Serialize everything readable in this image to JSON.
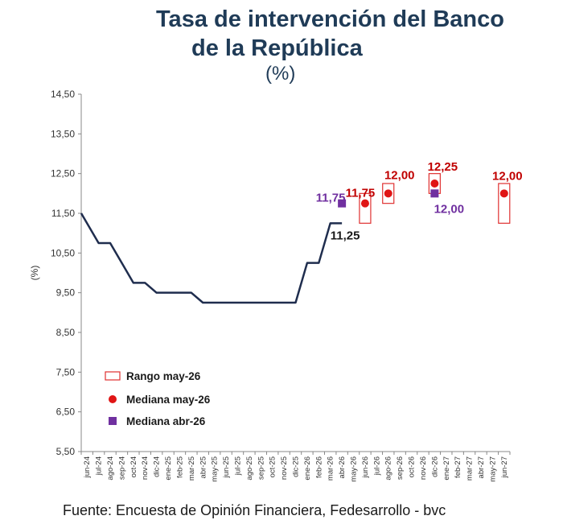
{
  "title_line1": "Tasa de intervención del Banco",
  "title_line2": "de la República",
  "unit_label": "(%)",
  "footer": "Fuente: Encuesta de Opinión Financiera, Fedesarrollo - bvc",
  "chart_data": {
    "type": "line",
    "ylabel": "(%)",
    "ylim": [
      5.5,
      14.5
    ],
    "yticks": [
      "5,50",
      "6,50",
      "7,50",
      "8,50",
      "9,50",
      "10,50",
      "11,50",
      "12,50",
      "13,50",
      "14,50"
    ],
    "categories": [
      "jun-24",
      "jul-24",
      "ago-24",
      "sep-24",
      "oct-24",
      "nov-24",
      "dic-24",
      "ene-25",
      "feb-25",
      "mar-25",
      "abr-25",
      "may-25",
      "jun-25",
      "jul-25",
      "ago-25",
      "sep-25",
      "oct-25",
      "nov-25",
      "dic-25",
      "ene-26",
      "feb-26",
      "mar-26",
      "abr-26",
      "may-26",
      "jun-26",
      "jul-26",
      "ago-26",
      "sep-26",
      "oct-26",
      "nov-26",
      "dic-26",
      "ene-27",
      "feb-27",
      "mar-27",
      "abr-27",
      "may-27",
      "jun-27"
    ],
    "historical": {
      "name": "",
      "color": "#1f2d4e",
      "points": [
        {
          "x": "jun-24",
          "y": 11.5
        },
        {
          "x": "jul-24",
          "y": 10.75
        },
        {
          "x": "ago-24",
          "y": 10.75
        },
        {
          "x": "sep-24",
          "y": 10.25
        },
        {
          "x": "oct-24",
          "y": 9.75
        },
        {
          "x": "nov-24",
          "y": 9.75
        },
        {
          "x": "dic-24",
          "y": 9.5
        },
        {
          "x": "ene-25",
          "y": 9.5
        },
        {
          "x": "feb-25",
          "y": 9.5
        },
        {
          "x": "mar-25",
          "y": 9.5
        },
        {
          "x": "abr-25",
          "y": 9.25
        },
        {
          "x": "may-25",
          "y": 9.25
        },
        {
          "x": "jun-25",
          "y": 9.25
        },
        {
          "x": "jul-25",
          "y": 9.25
        },
        {
          "x": "ago-25",
          "y": 9.25
        },
        {
          "x": "sep-25",
          "y": 9.25
        },
        {
          "x": "oct-25",
          "y": 9.25
        },
        {
          "x": "nov-25",
          "y": 9.25
        },
        {
          "x": "dic-25",
          "y": 9.25
        },
        {
          "x": "ene-26",
          "y": 10.25
        },
        {
          "x": "feb-26",
          "y": 10.25
        },
        {
          "x": "mar-26",
          "y": 11.25
        },
        {
          "x": "abr-26",
          "y": 11.25
        }
      ],
      "end_label": "11,25"
    },
    "range_may26": {
      "name": "Rango may-26",
      "color": "#e03030",
      "ranges": [
        {
          "x": "jun-26",
          "low": 11.25,
          "high": 12.0
        },
        {
          "x": "ago-26",
          "low": 11.75,
          "high": 12.25
        },
        {
          "x": "dic-26",
          "low": 12.0,
          "high": 12.5
        },
        {
          "x": "jun-27",
          "low": 11.25,
          "high": 12.25
        }
      ]
    },
    "median_may26": {
      "name": "Mediana may-26",
      "color": "#e01515",
      "label_color": "#c00000",
      "points": [
        {
          "x": "jun-26",
          "y": 11.75,
          "label": "11,75"
        },
        {
          "x": "ago-26",
          "y": 12.0,
          "label": "12,00"
        },
        {
          "x": "dic-26",
          "y": 12.25,
          "label": "12,25"
        },
        {
          "x": "jun-27",
          "y": 12.0,
          "label": "12,00"
        }
      ]
    },
    "median_abr26": {
      "name": "Mediana abr-26",
      "color": "#7030a0",
      "points": [
        {
          "x": "abr-26",
          "y": 11.75,
          "label": "11,75"
        },
        {
          "x": "dic-26",
          "y": 12.0,
          "label": "12,00"
        }
      ]
    },
    "legend": [
      "Rango may-26",
      "Mediana may-26",
      "Mediana abr-26"
    ],
    "legend_position": "bottom-left",
    "grid": false
  }
}
